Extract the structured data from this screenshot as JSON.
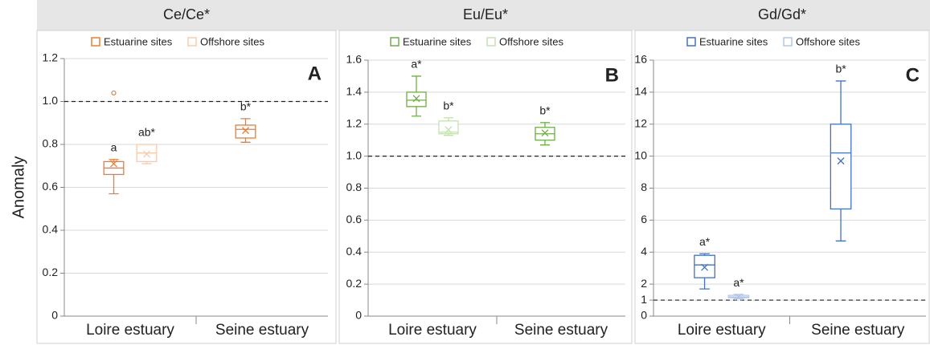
{
  "chart_data": [
    {
      "type": "box",
      "title": "Ce/Ce*",
      "panel_label": "A",
      "y_label": "Anomaly",
      "categories": [
        "Loire estuary",
        "Seine estuary"
      ],
      "ylim": [
        0,
        1.2
      ],
      "yticks": [
        0,
        0.2,
        0.4,
        0.6,
        0.8,
        {
          "value": 1,
          "label": "1.0"
        },
        1.2
      ],
      "grid": true,
      "ref_line": 1,
      "series": [
        {
          "name": "Estuarine sites",
          "color": "#ed7d31",
          "boxes": [
            {
              "min": 0.57,
              "q1": 0.66,
              "median": 0.69,
              "q3": 0.72,
              "max": 0.73,
              "mean": 0.71,
              "outliers": [
                1.04
              ],
              "label": "a"
            },
            {
              "min": 0.81,
              "q1": 0.83,
              "median": 0.87,
              "q3": 0.89,
              "max": 0.92,
              "mean": 0.865,
              "outliers": [],
              "label": "b*"
            }
          ]
        },
        {
          "name": "Offshore sites",
          "color": "#f8cbad",
          "boxes": [
            {
              "min": 0.71,
              "q1": 0.72,
              "median": 0.76,
              "q3": 0.8,
              "max": 0.8,
              "mean": 0.755,
              "outliers": [],
              "label": "ab*"
            },
            null
          ]
        }
      ]
    },
    {
      "type": "box",
      "title": "Eu/Eu*",
      "panel_label": "B",
      "categories": [
        "Loire estuary",
        "Seine estuary"
      ],
      "ylim": [
        0,
        1.6
      ],
      "yticks": [
        0,
        0.2,
        0.4,
        0.6,
        0.8,
        {
          "value": 1,
          "label": "1.0"
        },
        1.2,
        1.4,
        1.6
      ],
      "grid": true,
      "ref_line": 1,
      "series": [
        {
          "name": "Estuarine sites",
          "color": "#70ad47",
          "boxes": [
            {
              "min": 1.25,
              "q1": 1.31,
              "median": 1.35,
              "q3": 1.4,
              "max": 1.5,
              "mean": 1.36,
              "outliers": [],
              "label": "a*"
            },
            {
              "min": 1.07,
              "q1": 1.1,
              "median": 1.14,
              "q3": 1.18,
              "max": 1.21,
              "mean": 1.145,
              "outliers": [],
              "label": "b*"
            }
          ]
        },
        {
          "name": "Offshore sites",
          "color": "#c5e0b4",
          "boxes": [
            {
              "min": 1.13,
              "q1": 1.14,
              "median": 1.15,
              "q3": 1.22,
              "max": 1.24,
              "mean": 1.165,
              "outliers": [],
              "label": "b*"
            },
            null
          ]
        }
      ]
    },
    {
      "type": "box",
      "title": "Gd/Gd*",
      "panel_label": "C",
      "categories": [
        "Loire estuary",
        "Seine estuary"
      ],
      "ylim": [
        0,
        16
      ],
      "yticks": [
        0,
        1,
        2,
        4,
        6,
        8,
        10,
        12,
        14,
        16
      ],
      "grid": true,
      "ref_line": 1,
      "series": [
        {
          "name": "Estuarine sites",
          "color": "#4472c4",
          "boxes": [
            {
              "min": 1.7,
              "q1": 2.4,
              "median": 3.2,
              "q3": 3.8,
              "max": 3.9,
              "mean": 3.05,
              "outliers": [],
              "label": "a*"
            },
            {
              "min": 4.7,
              "q1": 6.7,
              "median": 10.2,
              "q3": 12,
              "max": 14.7,
              "mean": 9.7,
              "outliers": [],
              "label": "b*"
            }
          ]
        },
        {
          "name": "Offshore sites",
          "color": "#b4c7e7",
          "boxes": [
            {
              "min": 1.1,
              "q1": 1.15,
              "median": 1.2,
              "q3": 1.3,
              "max": 1.35,
              "mean": 1.2,
              "outliers": [],
              "label": "a*"
            },
            null
          ]
        }
      ]
    }
  ]
}
